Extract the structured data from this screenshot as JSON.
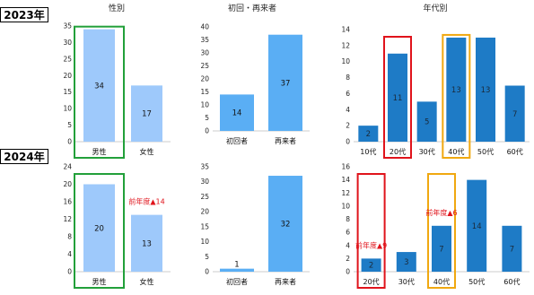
{
  "year_labels": [
    "2023年",
    "2024年"
  ],
  "panel_titles": [
    "性別",
    "初回・再来者",
    "年代別"
  ],
  "chart_data": [
    {
      "type": "bar",
      "panel": "gender",
      "year": "2023年",
      "title": "性別",
      "categories": [
        "男性",
        "女性"
      ],
      "values": [
        34,
        17
      ],
      "ylim": [
        0,
        35
      ],
      "yticks": [
        0,
        5,
        10,
        15,
        20,
        25,
        30,
        35
      ],
      "grid": false,
      "bar_color": "#9ec9fb",
      "highlights": [
        {
          "category": "男性",
          "color": "#22a03a"
        }
      ]
    },
    {
      "type": "bar",
      "panel": "visit",
      "year": "2023年",
      "title": "初回・再来者",
      "categories": [
        "初回者",
        "再来者"
      ],
      "values": [
        14,
        37
      ],
      "ylim": [
        0,
        40
      ],
      "yticks": [
        0,
        5,
        10,
        15,
        20,
        25,
        30,
        35,
        40
      ],
      "grid": false,
      "bar_color": "#5aaef4"
    },
    {
      "type": "bar",
      "panel": "age",
      "year": "2023年",
      "title": "年代別",
      "categories": [
        "10代",
        "20代",
        "30代",
        "40代",
        "50代",
        "60代"
      ],
      "values": [
        2,
        11,
        5,
        13,
        13,
        7
      ],
      "ylim": [
        0,
        14
      ],
      "yticks": [
        0,
        2,
        4,
        6,
        8,
        10,
        12,
        14
      ],
      "grid": false,
      "bar_color": "#1e7bc6",
      "highlights": [
        {
          "category": "20代",
          "color": "#e0131b"
        },
        {
          "category": "40代",
          "color": "#f0a810"
        }
      ]
    },
    {
      "type": "bar",
      "panel": "gender",
      "year": "2024年",
      "categories": [
        "男性",
        "女性"
      ],
      "values": [
        20,
        13
      ],
      "ylim": [
        0,
        24
      ],
      "yticks": [
        0,
        4,
        8,
        12,
        16,
        20,
        24
      ],
      "grid": false,
      "bar_color": "#9ec9fb",
      "highlights": [
        {
          "category": "男性",
          "color": "#22a03a"
        }
      ],
      "annotations": [
        {
          "category": "女性",
          "text": "前年度▲14",
          "color": "#e0131b"
        }
      ]
    },
    {
      "type": "bar",
      "panel": "visit",
      "year": "2024年",
      "categories": [
        "初回者",
        "再来者"
      ],
      "values": [
        1,
        32
      ],
      "ylim": [
        0,
        35
      ],
      "yticks": [
        0,
        5,
        10,
        15,
        20,
        25,
        30,
        35
      ],
      "grid": false,
      "bar_color": "#5aaef4"
    },
    {
      "type": "bar",
      "panel": "age",
      "year": "2024年",
      "categories": [
        "20代",
        "30代",
        "40代",
        "50代",
        "60代"
      ],
      "values": [
        2,
        3,
        7,
        14,
        7
      ],
      "ylim": [
        0,
        16
      ],
      "yticks": [
        0,
        2,
        4,
        6,
        8,
        10,
        12,
        14,
        16
      ],
      "grid": false,
      "bar_color": "#1e7bc6",
      "highlights": [
        {
          "category": "20代",
          "color": "#e0131b"
        },
        {
          "category": "40代",
          "color": "#f0a810"
        }
      ],
      "annotations": [
        {
          "category": "20代",
          "text": "前年度▲9",
          "color": "#e0131b"
        },
        {
          "category": "40代",
          "text": "前年度▲6",
          "color": "#e0131b"
        }
      ]
    }
  ]
}
